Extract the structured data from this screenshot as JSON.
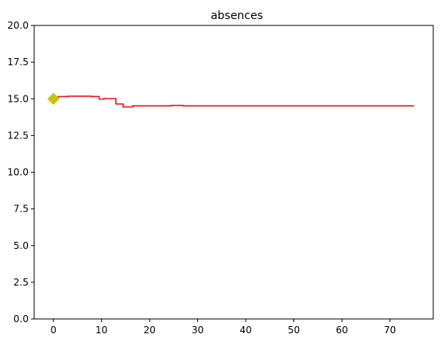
{
  "chart_data": {
    "type": "line",
    "title": "absences",
    "xlabel": "",
    "ylabel": "",
    "xlim": [
      -4,
      79
    ],
    "ylim": [
      0,
      20
    ],
    "x_ticks": [
      0,
      10,
      20,
      30,
      40,
      50,
      60,
      70
    ],
    "y_ticks": [
      0.0,
      2.5,
      5.0,
      7.5,
      10.0,
      12.5,
      15.0,
      17.5,
      20.0
    ],
    "x_tick_labels": [
      "0",
      "10",
      "20",
      "30",
      "40",
      "50",
      "60",
      "70"
    ],
    "y_tick_labels": [
      "0.0",
      "2.5",
      "5.0",
      "7.5",
      "10.0",
      "12.5",
      "15.0",
      "17.5",
      "20.0"
    ],
    "grid": false,
    "legend": "none",
    "series": [
      {
        "type": "step-line",
        "color": "#e8191c",
        "points": [
          [
            0,
            15.0
          ],
          [
            1,
            15.0
          ],
          [
            1,
            15.15
          ],
          [
            3,
            15.15
          ],
          [
            3,
            15.18
          ],
          [
            8,
            15.18
          ],
          [
            8,
            15.15
          ],
          [
            9.5,
            15.15
          ],
          [
            9.5,
            14.98
          ],
          [
            10.5,
            14.98
          ],
          [
            10.5,
            15.02
          ],
          [
            13,
            15.02
          ],
          [
            13,
            14.65
          ],
          [
            14.5,
            14.65
          ],
          [
            14.5,
            14.45
          ],
          [
            16.5,
            14.45
          ],
          [
            16.5,
            14.52
          ],
          [
            24.5,
            14.52
          ],
          [
            24.5,
            14.55
          ],
          [
            27,
            14.55
          ],
          [
            27,
            14.52
          ],
          [
            75,
            14.52
          ]
        ]
      },
      {
        "type": "marker",
        "shape": "diamond",
        "color": "#c8c40f",
        "points": [
          [
            0,
            15.0
          ]
        ]
      }
    ]
  }
}
